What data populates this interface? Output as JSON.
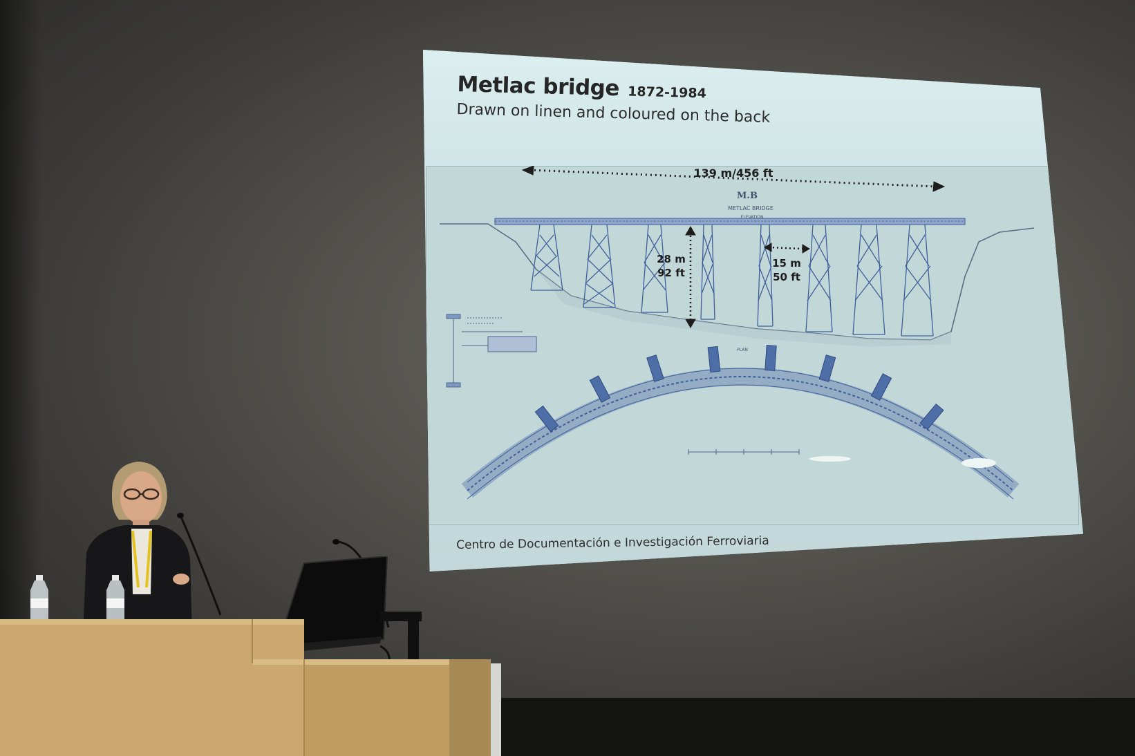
{
  "slide": {
    "title": "Metlac bridge",
    "years": "1872-1984",
    "subtitle": "Drawn on linen and coloured on the back",
    "credit": "Centro de Documentación e Investigación Ferroviaria",
    "dimensions": {
      "length": "139 m/456 ft",
      "height_m": "28 m",
      "height_ft": "92 ft",
      "span_m": "15 m",
      "span_ft": "50 ft"
    },
    "drawing_labels": {
      "monogram": "M.B",
      "bridge_name": "METLAC BRIDGE",
      "view": "ELEVATION",
      "plan": "PLAN"
    }
  },
  "colors": {
    "slide_background": "#cfe2e4",
    "blueprint_ink": "#3f5f9a",
    "podium_wood": "#c9a76e",
    "lanyard": "#e4c21f"
  }
}
